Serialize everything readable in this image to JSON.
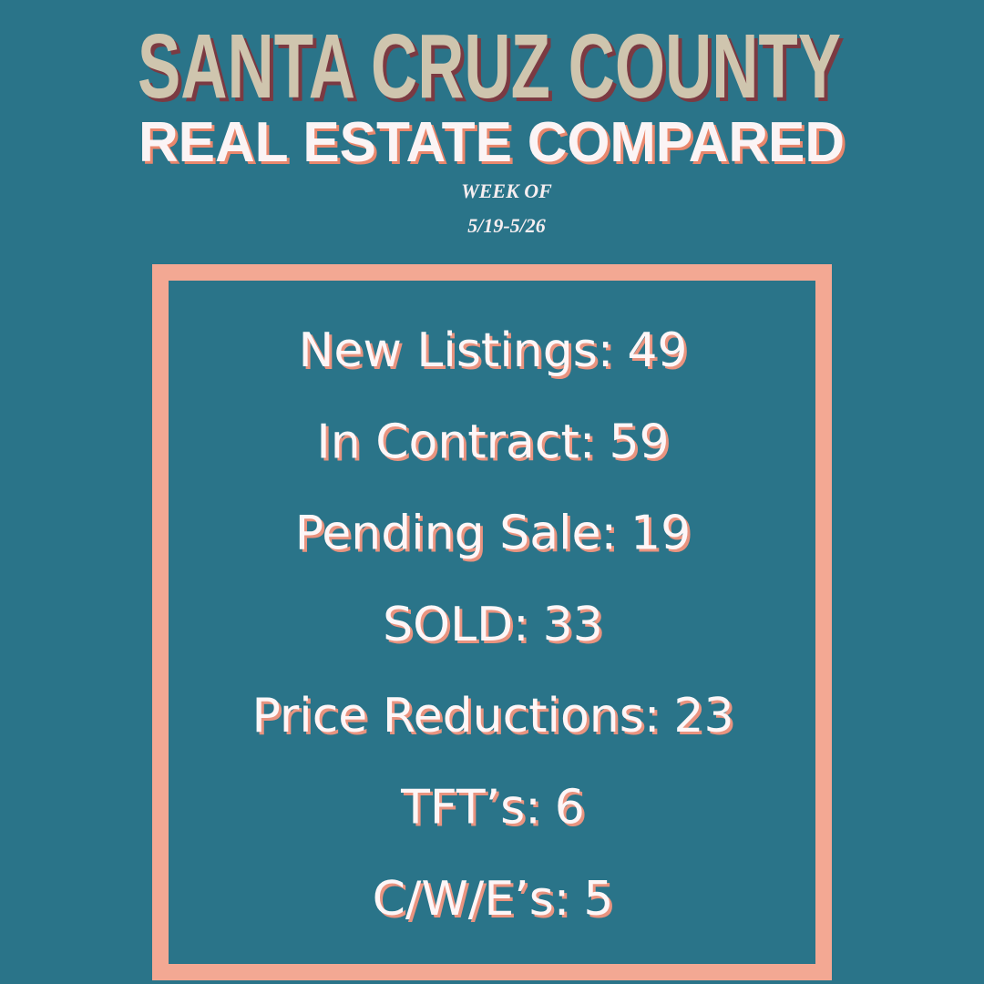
{
  "header": {
    "title": "SANTA CRUZ COUNTY",
    "subtitle": "REAL ESTATE COMPARED",
    "week_label": "WEEK OF",
    "dates": "5/19-5/26"
  },
  "stats": [
    {
      "label": "New Listings:",
      "value": 49
    },
    {
      "label": "In Contract:",
      "value": 59
    },
    {
      "label": "Pending Sale:",
      "value": 19
    },
    {
      "label": "SOLD:",
      "value": 33
    },
    {
      "label": "Price Reductions:",
      "value": 23
    },
    {
      "label": "TFT’s:",
      "value": 6
    },
    {
      "label": "C/W/E’s:",
      "value": 5
    }
  ]
}
